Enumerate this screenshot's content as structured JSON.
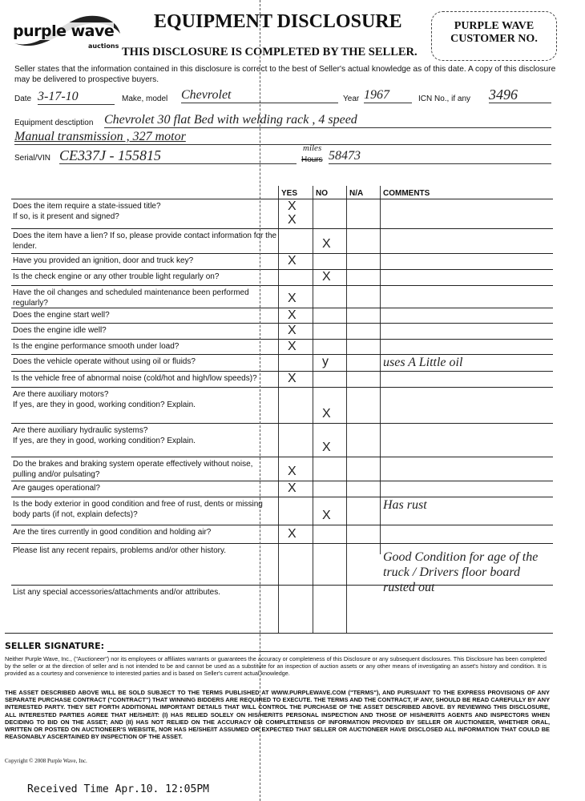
{
  "header": {
    "logo_text": "purple wave",
    "logo_sub": "auctions",
    "title": "EQUIPMENT DISCLOSURE",
    "subtitle": "THIS DISCLOSURE IS COMPLETED BY THE SELLER.",
    "customer_box": "PURPLE WAVE CUSTOMER NO.",
    "intro": "Seller states that the information contained in this disclosure is correct to the best of Seller's actual knowledge as of this date. A copy of this disclosure may be delivered to prospective buyers."
  },
  "fields": {
    "date_label": "Date",
    "date_value": "3-17-10",
    "make_label": "Make, model",
    "make_value": "Chevrolet",
    "year_label": "Year",
    "year_value": "1967",
    "icn_label": "ICN No., if any",
    "icn_value": "3496",
    "desc_label": "Equipment desctiption",
    "desc_value_1": "Chevrolet 30 flat Bed with welding rack , 4 speed",
    "desc_value_2": "Manual transmission , 327 motor",
    "serial_label": "Serial/VIN",
    "serial_value": "CE337J - 155815",
    "hours_label": "Hours",
    "hours_correction": "miles",
    "hours_value": "58473"
  },
  "table": {
    "columns": [
      "YES",
      "NO",
      "N/A",
      "COMMENTS"
    ],
    "rows": [
      {
        "question": "Does the item require a state-issued title?\nIf so, is it present and signed?",
        "marks": [
          {
            "col": "YES",
            "text": "X"
          },
          {
            "col": "YES",
            "text": "X"
          }
        ],
        "comment": ""
      },
      {
        "question": "Does the item have a lien? If so, please provide contact information for the lender.",
        "marks": [
          {
            "col": "NO",
            "text": "X"
          }
        ],
        "comment": ""
      },
      {
        "question": "Have you provided an ignition, door and truck key?",
        "marks": [
          {
            "col": "YES",
            "text": "X"
          }
        ],
        "comment": ""
      },
      {
        "question": "Is the check engine or any other trouble light regularly on?",
        "marks": [
          {
            "col": "NO",
            "text": "X"
          }
        ],
        "comment": ""
      },
      {
        "question": "Have the oil changes and scheduled maintenance been performed regularly?",
        "marks": [
          {
            "col": "YES",
            "text": "X"
          }
        ],
        "comment": ""
      },
      {
        "question": "Does the engine start well?",
        "marks": [
          {
            "col": "YES",
            "text": "X"
          }
        ],
        "comment": ""
      },
      {
        "question": "Does the engine idle well?",
        "marks": [
          {
            "col": "YES",
            "text": "X"
          }
        ],
        "comment": ""
      },
      {
        "question": "Is the engine performance smooth under load?",
        "marks": [
          {
            "col": "YES",
            "text": "X"
          }
        ],
        "comment": ""
      },
      {
        "question": "Does the vehicle operate without using oil or fluids?",
        "marks": [
          {
            "col": "NO",
            "text": "y"
          }
        ],
        "comment": "uses A Little oil"
      },
      {
        "question": "Is the vehicle free of abnormal noise (cold/hot and high/low speeds)?",
        "marks": [
          {
            "col": "YES",
            "text": "X"
          }
        ],
        "comment": ""
      },
      {
        "question": "Are there auxiliary motors?\nIf yes, are they in good, working condition? Explain.",
        "marks": [
          {
            "col": "NO",
            "text": "X"
          }
        ],
        "comment": ""
      },
      {
        "question": "Are there auxiliary hydraulic systems?\nIf yes, are they in good, working condition? Explain.",
        "marks": [
          {
            "col": "NO",
            "text": "X"
          }
        ],
        "comment": ""
      },
      {
        "question": "Do the brakes and braking system operate effectively without noise, pulling and/or pulsating?",
        "marks": [
          {
            "col": "YES",
            "text": "X"
          }
        ],
        "comment": ""
      },
      {
        "question": "Are gauges operational?",
        "marks": [
          {
            "col": "YES",
            "text": "X"
          }
        ],
        "comment": ""
      },
      {
        "question": "Is the body exterior in good condition and free of rust, dents or missing body parts (if not, explain defects)?",
        "marks": [
          {
            "col": "NO",
            "text": "X"
          }
        ],
        "comment": "Has rust"
      },
      {
        "question": "Are the tires currently in good condition and holding air?",
        "marks": [
          {
            "col": "YES",
            "text": "X"
          }
        ],
        "comment": ""
      },
      {
        "question": "Please list any recent repairs, problems and/or other history.",
        "marks": [],
        "comment": "Good Condition for age of the truck / Drivers floor board rusted out"
      },
      {
        "question": "List any special accessories/attachments and/or attributes.",
        "marks": [],
        "comment": ""
      }
    ]
  },
  "signature_label": "SELLER SIGNATURE:",
  "disclaimer": "Neither Purple Wave, Inc., (\"Auctioneer\") nor its employees or affiliates warrants or guarantees the accuracy or completeness of this Disclosure or any subsequent disclosures. This Disclosure has been completed by the seller or at the direction of seller and is not intended to be and cannot be used as a substitute for an inspection of auction assets or any other means of investigating an asset's history and condition. It is provided as a courtesy and convenience to interested parties and is based on Seller's current actual knowledge.",
  "terms": "THE ASSET DESCRIBED ABOVE WILL BE SOLD SUBJECT TO THE TERMS PUBLISHED AT WWW.PURPLEWAVE.COM (\"TERMS\"), AND PURSUANT TO THE EXPRESS PROVISIONS OF ANY SEPARATE PURCHASE CONTRACT (\"CONTRACT\") THAT WINNING BIDDERS ARE REQUIRED TO EXECUTE. THE TERMS AND THE CONTRACT, IF ANY, SHOULD BE READ CAREFULLY BY ANY INTERESTED PARTY. THEY SET FORTH ADDITIONAL IMPORTANT DETAILS THAT WILL CONTROL THE PURCHASE OF THE ASSET DESCRIBED ABOVE. BY REVIEWING THIS DISCLOSURE, ALL INTERESTED PARTIES AGREE THAT HE/SHE/IT: (I) HAS RELIED SOLELY ON HIS/HER/ITS PERSONAL INSPECTION AND THOSE OF HIS/HER/ITS AGENTS AND INSPECTORS WHEN DECIDING TO BID ON THE ASSET; AND (II) HAS NOT RELIED ON THE ACCURACY OR COMPLETENESS OF INFORMATION PROVIDED BY SELLER OR AUCTIONEER, WHETHER ORAL, WRITTEN OR POSTED ON AUCTIONEER'S WEBSITE, NOR HAS HE/SHE/IT ASSUMED OR EXPECTED THAT SELLER OR AUCTIONEER HAVE DISCLOSED ALL INFORMATION THAT COULD BE REASONABLY ASCERTAINED BY INSPECTION OF THE ASSET.",
  "copyright": "Copyright © 2008 Purple Wave, Inc.",
  "fax_stamp": "Received Time Apr.10. 12:05PM"
}
